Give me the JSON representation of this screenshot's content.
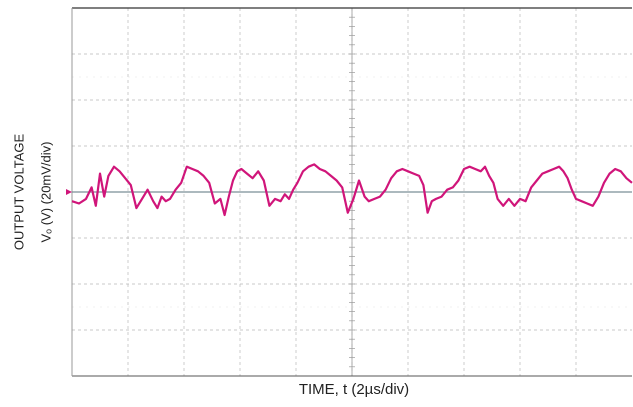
{
  "chart_data": {
    "type": "line",
    "title": "",
    "xlabel": "TIME, t (2µs/div)",
    "ylabel_line1": "OUTPUT VOLTAGE",
    "ylabel_line2": "Vₒ (V) (20mV/div)",
    "x_unit": "µs",
    "y_unit": "mV",
    "x_range": [
      0,
      20
    ],
    "y_range": [
      -80,
      80
    ],
    "x_divisions": 10,
    "y_divisions": 8,
    "grid": true,
    "trace_color": "#d0157a",
    "center_line_color": "#7a8f96",
    "series": [
      {
        "name": "",
        "x": [
          0,
          0.25,
          0.5,
          0.7,
          0.85,
          1,
          1.15,
          1.3,
          1.5,
          1.7,
          1.9,
          2.1,
          2.3,
          2.5,
          2.7,
          2.9,
          3.05,
          3.2,
          3.35,
          3.5,
          3.7,
          3.9,
          4.1,
          4.3,
          4.5,
          4.7,
          4.9,
          5.1,
          5.3,
          5.45,
          5.6,
          5.75,
          5.9,
          6.05,
          6.25,
          6.45,
          6.65,
          6.85,
          7.05,
          7.25,
          7.45,
          7.6,
          7.75,
          7.9,
          8.05,
          8.25,
          8.45,
          8.65,
          8.85,
          9.05,
          9.25,
          9.45,
          9.65,
          9.85,
          10.05,
          10.25,
          10.45,
          10.6,
          10.8,
          11,
          11.2,
          11.4,
          11.6,
          11.8,
          12,
          12.2,
          12.4,
          12.55,
          12.7,
          12.85,
          13,
          13.2,
          13.4,
          13.6,
          13.8,
          14,
          14.2,
          14.4,
          14.6,
          14.75,
          14.9,
          15.05,
          15.2,
          15.4,
          15.6,
          15.8,
          16,
          16.2,
          16.4,
          16.6,
          16.8,
          17,
          17.2,
          17.4,
          17.55,
          17.7,
          17.85,
          18,
          18.2,
          18.4,
          18.6,
          18.8,
          19,
          19.2,
          19.4,
          19.6,
          19.8,
          20
        ],
        "y": [
          -4,
          -5,
          -3,
          2,
          -6,
          8,
          -2,
          7,
          11,
          9,
          6,
          3,
          -7,
          -3,
          1,
          -4,
          -7,
          -2,
          -4,
          -3,
          1,
          4,
          11,
          10,
          9,
          7,
          4,
          -5,
          -3,
          -10,
          -2,
          5,
          9,
          10,
          8,
          6,
          9,
          5,
          -6,
          -3,
          -4,
          -1,
          -3,
          1,
          4,
          9,
          11,
          12,
          10,
          9,
          7,
          5,
          2,
          -9,
          -3,
          5,
          -2,
          -4,
          -3,
          -2,
          1,
          6,
          9,
          10,
          9,
          8,
          7,
          3,
          -9,
          -4,
          -3,
          -2,
          1,
          2,
          5,
          10,
          11,
          10,
          9,
          11,
          7,
          4,
          -3,
          -6,
          -3,
          -6,
          -3,
          -4,
          2,
          5,
          8,
          9,
          10,
          11,
          9,
          6,
          1,
          -3,
          -4,
          -5,
          -6,
          -2,
          4,
          8,
          10,
          9,
          6,
          4
        ]
      }
    ]
  }
}
